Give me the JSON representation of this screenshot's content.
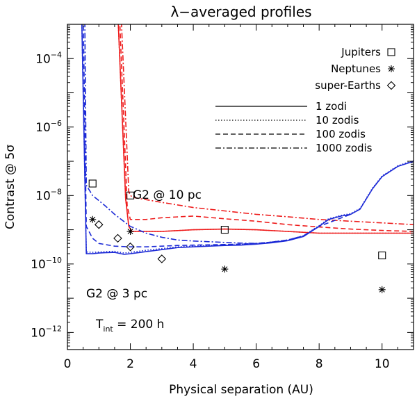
{
  "chart_data": {
    "type": "line",
    "title_symbol": "λ",
    "title_rest": "−averaged profiles",
    "xlabel": "Physical separation (AU)",
    "ylabel_main": "Contrast @ 5",
    "ylabel_symbol": "σ",
    "xlim": [
      0,
      11
    ],
    "ylim_exp": [
      -12.5,
      -3
    ],
    "y_scale": "log",
    "xticks": [
      0,
      2,
      4,
      6,
      8,
      10
    ],
    "yticks_exp": [
      -12,
      -10,
      -8,
      -6,
      -4
    ],
    "ytick_base": "10",
    "annotations": {
      "g2_10pc": "G2 @ 10 pc",
      "g2_3pc": "G2 @ 3 pc",
      "tint_main": "T",
      "tint_sub": "int",
      "tint_value": " = 200 h"
    },
    "colors": {
      "g2_10pc": "#ee1c1c",
      "g2_3pc": "#1c2ad6",
      "markers": "#000000"
    },
    "line_legend": [
      {
        "label": "1 zodi",
        "style": "solid"
      },
      {
        "label": "10 zodis",
        "style": "dotted"
      },
      {
        "label": "100 zodis",
        "style": "dashed"
      },
      {
        "label": "1000 zodis",
        "style": "dashdot"
      }
    ],
    "planet_legend": [
      {
        "label": "Jupiters",
        "marker": "square"
      },
      {
        "label": "Neptunes",
        "marker": "asterisk"
      },
      {
        "label": "super-Earths",
        "marker": "diamond"
      }
    ],
    "series": [
      {
        "target": "g2_10pc",
        "zodi": 1,
        "style": "solid",
        "x": [
          1.6,
          1.85,
          1.95,
          2.05,
          3,
          4,
          5,
          6,
          7,
          8,
          9,
          10,
          11
        ],
        "log_y": [
          -2.6,
          -8.1,
          -8.9,
          -9.05,
          -9.05,
          -9.0,
          -8.98,
          -9.0,
          -9.05,
          -9.1,
          -9.1,
          -9.1,
          -9.1
        ]
      },
      {
        "target": "g2_10pc",
        "zodi": 10,
        "style": "dotted",
        "x": [
          1.6,
          1.85,
          1.95,
          2.05,
          3,
          4,
          5,
          6,
          7,
          8,
          9,
          10,
          11
        ],
        "log_y": [
          -2.6,
          -8.1,
          -8.9,
          -9.05,
          -9.05,
          -9.0,
          -8.98,
          -9.0,
          -9.05,
          -9.1,
          -9.1,
          -9.1,
          -9.1
        ]
      },
      {
        "target": "g2_10pc",
        "zodi": 100,
        "style": "dashed",
        "x": [
          1.65,
          1.9,
          2.0,
          2.5,
          3,
          4,
          5,
          6,
          7,
          8,
          9,
          10,
          11
        ],
        "log_y": [
          -2.6,
          -8.3,
          -8.7,
          -8.7,
          -8.65,
          -8.6,
          -8.68,
          -8.75,
          -8.85,
          -8.92,
          -8.98,
          -9.02,
          -9.05
        ]
      },
      {
        "target": "g2_10pc",
        "zodi": 1000,
        "style": "dashdot",
        "x": [
          1.7,
          1.95,
          2.05,
          3,
          4,
          5,
          6,
          7,
          8,
          9,
          10,
          11
        ],
        "log_y": [
          -2.6,
          -7.9,
          -8.05,
          -8.2,
          -8.35,
          -8.45,
          -8.55,
          -8.62,
          -8.7,
          -8.75,
          -8.8,
          -8.85
        ]
      },
      {
        "target": "g2_3pc",
        "zodi": 1,
        "style": "solid",
        "x": [
          0.45,
          0.6,
          0.8,
          1.0,
          1.2,
          1.5,
          1.8,
          2.0,
          2.5,
          3.0,
          3.5,
          4.0,
          4.5,
          5.0,
          5.5,
          6.0,
          6.5,
          7.0,
          7.5,
          8.0,
          8.3,
          8.7,
          9.0,
          9.3,
          9.7,
          10.0,
          10.5,
          11.0
        ],
        "log_y": [
          -2.6,
          -9.7,
          -9.7,
          -9.68,
          -9.67,
          -9.66,
          -9.72,
          -9.7,
          -9.64,
          -9.58,
          -9.52,
          -9.5,
          -9.48,
          -9.46,
          -9.45,
          -9.42,
          -9.38,
          -9.32,
          -9.2,
          -8.9,
          -8.7,
          -8.6,
          -8.55,
          -8.4,
          -7.8,
          -7.45,
          -7.15,
          -7.0
        ]
      },
      {
        "target": "g2_3pc",
        "zodi": 10,
        "style": "dotted",
        "x": [
          0.45,
          0.6,
          0.8,
          1.0,
          1.2,
          1.5,
          1.8,
          2.0,
          2.5,
          3.0,
          3.5,
          4.0,
          4.5,
          5.0,
          5.5,
          6.0,
          6.5,
          7.0,
          7.5,
          8.0,
          8.3,
          8.7,
          9.0,
          9.3,
          9.7,
          10.0,
          10.5,
          11.0
        ],
        "log_y": [
          -2.6,
          -9.65,
          -9.66,
          -9.65,
          -9.64,
          -9.63,
          -9.68,
          -9.66,
          -9.6,
          -9.55,
          -9.5,
          -9.48,
          -9.46,
          -9.44,
          -9.43,
          -9.4,
          -9.36,
          -9.3,
          -9.18,
          -8.88,
          -8.68,
          -8.58,
          -8.53,
          -8.38,
          -7.78,
          -7.43,
          -7.13,
          -6.98
        ]
      },
      {
        "target": "g2_3pc",
        "zodi": 100,
        "style": "dashed",
        "x": [
          0.5,
          0.6,
          0.8,
          1.0,
          1.5,
          2.0,
          2.5,
          3.0,
          3.5,
          4.0,
          4.5,
          5.0,
          5.5,
          6.0,
          6.5,
          7.0,
          7.5,
          8.0,
          9.0
        ],
        "log_y": [
          -2.6,
          -8.9,
          -9.25,
          -9.4,
          -9.48,
          -9.5,
          -9.5,
          -9.48,
          -9.46,
          -9.45,
          -9.44,
          -9.43,
          -9.42,
          -9.4,
          -9.36,
          -9.3,
          -9.18,
          -8.9,
          -8.55
        ]
      },
      {
        "target": "g2_3pc",
        "zodi": 1000,
        "style": "dashdot",
        "x": [
          0.55,
          0.6,
          0.8,
          1.0,
          1.2,
          1.5,
          2.0,
          2.5,
          3.0,
          3.5,
          4.0,
          4.5,
          5.0,
          5.5,
          6.0,
          6.5,
          7.0,
          7.5,
          8.0
        ],
        "log_y": [
          -2.6,
          -7.7,
          -8.0,
          -8.15,
          -8.3,
          -8.55,
          -8.9,
          -9.1,
          -9.22,
          -9.3,
          -9.33,
          -9.35,
          -9.37,
          -9.39,
          -9.4,
          -9.36,
          -9.3,
          -9.18,
          -8.9
        ]
      }
    ],
    "planets": [
      {
        "type": "square",
        "x": 0.8,
        "log_y": -7.65
      },
      {
        "type": "square",
        "x": 2.0,
        "log_y": -8.0
      },
      {
        "type": "square",
        "x": 5.0,
        "log_y": -9.0
      },
      {
        "type": "square",
        "x": 10.0,
        "log_y": -9.75
      },
      {
        "type": "asterisk",
        "x": 0.8,
        "log_y": -8.7
      },
      {
        "type": "asterisk",
        "x": 2.0,
        "log_y": -9.05
      },
      {
        "type": "asterisk",
        "x": 5.0,
        "log_y": -10.15
      },
      {
        "type": "asterisk",
        "x": 10.0,
        "log_y": -10.75
      },
      {
        "type": "diamond",
        "x": 1.0,
        "log_y": -8.85
      },
      {
        "type": "diamond",
        "x": 1.6,
        "log_y": -9.25
      },
      {
        "type": "diamond",
        "x": 2.0,
        "log_y": -9.5
      },
      {
        "type": "diamond",
        "x": 3.0,
        "log_y": -9.85
      }
    ]
  }
}
